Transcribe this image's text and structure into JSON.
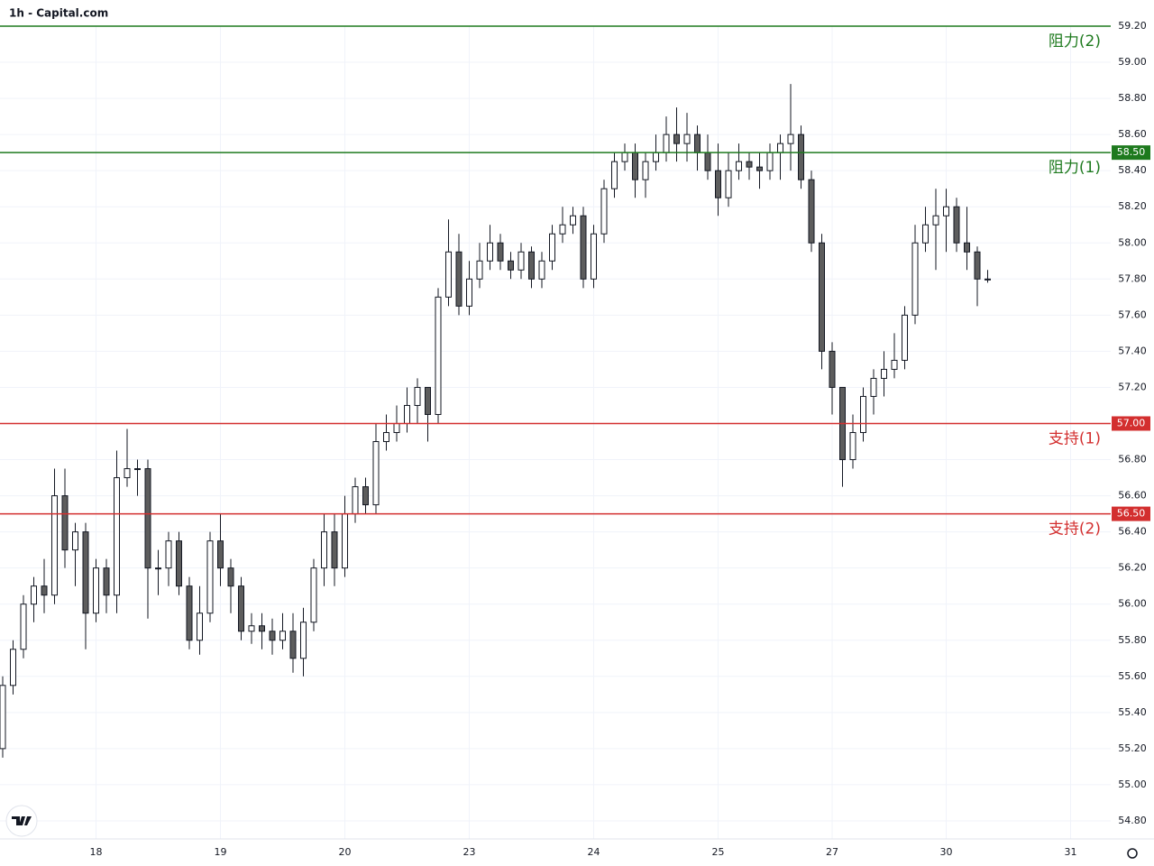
{
  "chart_data": {
    "type": "candlestick",
    "title": "1h - Capital.com",
    "categories": [
      null,
      null,
      null,
      null,
      null,
      null,
      null,
      null,
      null,
      "18",
      null,
      null,
      null,
      null,
      null,
      null,
      null,
      null,
      null,
      null,
      null,
      "19",
      null,
      null,
      null,
      null,
      null,
      null,
      null,
      null,
      null,
      null,
      null,
      "20",
      null,
      null,
      null,
      null,
      null,
      null,
      null,
      null,
      null,
      null,
      null,
      "23",
      null,
      null,
      null,
      null,
      null,
      null,
      null,
      null,
      null,
      null,
      null,
      "24",
      null,
      null,
      null,
      null,
      null,
      null,
      null,
      null,
      null,
      null,
      null,
      "25",
      null,
      null,
      null,
      null,
      null,
      null,
      null,
      null,
      null,
      null,
      "27",
      null,
      null,
      null,
      null,
      null,
      null,
      null,
      null,
      null,
      null,
      "30",
      null,
      null,
      null,
      null,
      null,
      null,
      null,
      null,
      null,
      null,
      null,
      "31"
    ],
    "open": [
      55.2,
      55.55,
      55.75,
      56.0,
      56.1,
      56.05,
      56.6,
      56.3,
      56.4,
      55.95,
      56.2,
      56.05,
      56.7,
      56.75,
      56.75,
      56.2,
      56.2,
      56.35,
      56.1,
      55.8,
      55.95,
      56.35,
      56.2,
      56.1,
      55.85,
      55.88,
      55.85,
      55.8,
      55.85,
      55.7,
      55.9,
      56.2,
      56.4,
      56.2,
      56.5,
      56.65,
      56.55,
      56.9,
      56.95,
      57.0,
      57.1,
      57.2,
      57.05,
      57.7,
      57.95,
      57.65,
      57.8,
      57.9,
      58.0,
      57.9,
      57.85,
      57.95,
      57.8,
      57.9,
      58.05,
      58.1,
      58.15,
      57.8,
      58.05,
      58.3,
      58.45,
      58.5,
      58.35,
      58.45,
      58.5,
      58.6,
      58.55,
      58.6,
      58.5,
      58.4,
      58.25,
      58.4,
      58.45,
      58.42,
      58.4,
      58.5,
      58.55,
      58.6,
      58.35,
      58.0,
      57.4,
      57.2,
      56.8,
      56.95,
      57.15,
      57.25,
      57.3,
      57.35,
      57.6,
      58.0,
      58.1,
      58.15,
      58.2,
      58.0,
      57.95,
      57.8,
      null,
      null,
      null,
      null,
      null,
      null,
      null,
      null
    ],
    "high": [
      55.6,
      55.8,
      56.05,
      56.15,
      56.25,
      56.75,
      56.75,
      56.45,
      56.45,
      56.25,
      56.25,
      56.85,
      56.97,
      56.8,
      56.8,
      56.3,
      56.4,
      56.4,
      56.15,
      56.1,
      56.4,
      56.5,
      56.25,
      56.15,
      55.95,
      55.95,
      55.92,
      55.95,
      55.95,
      55.98,
      56.25,
      56.5,
      56.5,
      56.6,
      56.7,
      56.7,
      57.0,
      57.05,
      57.1,
      57.2,
      57.25,
      57.2,
      57.75,
      58.13,
      58.05,
      57.9,
      58.0,
      58.1,
      58.05,
      57.95,
      58.0,
      57.98,
      57.95,
      58.1,
      58.2,
      58.2,
      58.2,
      58.1,
      58.35,
      58.5,
      58.55,
      58.55,
      58.5,
      58.6,
      58.7,
      58.75,
      58.72,
      58.65,
      58.6,
      58.55,
      58.5,
      58.55,
      58.5,
      58.5,
      58.55,
      58.6,
      58.88,
      58.65,
      58.4,
      58.05,
      57.45,
      57.2,
      57.05,
      57.2,
      57.3,
      57.4,
      57.5,
      57.65,
      58.1,
      58.2,
      58.3,
      58.3,
      58.25,
      58.2,
      57.98,
      57.85,
      null,
      null,
      null,
      null,
      null,
      null,
      null,
      null
    ],
    "low": [
      55.15,
      55.5,
      55.7,
      55.9,
      55.95,
      56.0,
      56.2,
      56.1,
      55.75,
      55.9,
      55.95,
      55.95,
      56.65,
      56.6,
      55.92,
      56.05,
      56.1,
      56.05,
      55.75,
      55.72,
      55.9,
      56.1,
      55.95,
      55.8,
      55.78,
      55.75,
      55.72,
      55.75,
      55.62,
      55.6,
      55.85,
      56.1,
      56.1,
      56.15,
      56.45,
      56.5,
      56.5,
      56.85,
      56.9,
      56.95,
      57.0,
      56.9,
      57.0,
      57.65,
      57.6,
      57.6,
      57.75,
      57.85,
      57.85,
      57.8,
      57.8,
      57.75,
      57.75,
      57.85,
      58.0,
      58.05,
      57.75,
      57.75,
      58.0,
      58.25,
      58.4,
      58.25,
      58.25,
      58.4,
      58.45,
      58.45,
      58.45,
      58.4,
      58.35,
      58.15,
      58.2,
      58.35,
      58.35,
      58.3,
      58.35,
      58.35,
      58.4,
      58.3,
      57.95,
      57.3,
      57.05,
      56.65,
      56.75,
      56.9,
      57.05,
      57.15,
      57.25,
      57.3,
      57.55,
      57.95,
      57.85,
      57.95,
      57.95,
      57.85,
      57.65,
      57.78,
      null,
      null,
      null,
      null,
      null,
      null,
      null,
      null
    ],
    "close": [
      55.55,
      55.75,
      56.0,
      56.1,
      56.05,
      56.6,
      56.3,
      56.4,
      55.95,
      56.2,
      56.05,
      56.7,
      56.75,
      56.75,
      56.2,
      56.2,
      56.35,
      56.1,
      55.8,
      55.95,
      56.35,
      56.2,
      56.1,
      55.85,
      55.88,
      55.85,
      55.8,
      55.85,
      55.7,
      55.9,
      56.2,
      56.4,
      56.2,
      56.5,
      56.65,
      56.55,
      56.9,
      56.95,
      57.0,
      57.1,
      57.2,
      57.05,
      57.7,
      57.95,
      57.65,
      57.8,
      57.9,
      58.0,
      57.9,
      57.85,
      57.95,
      57.8,
      57.9,
      58.05,
      58.1,
      58.15,
      57.8,
      58.05,
      58.3,
      58.45,
      58.5,
      58.35,
      58.45,
      58.5,
      58.6,
      58.55,
      58.6,
      58.5,
      58.4,
      58.25,
      58.4,
      58.45,
      58.42,
      58.4,
      58.5,
      58.55,
      58.6,
      58.35,
      58.0,
      57.4,
      57.2,
      56.8,
      56.95,
      57.15,
      57.25,
      57.3,
      57.35,
      57.6,
      58.0,
      58.1,
      58.15,
      58.2,
      58.0,
      57.95,
      57.8,
      57.8,
      null,
      null,
      null,
      null,
      null,
      null,
      null,
      null
    ],
    "up_color": "#ffffff",
    "down_color": "#5d5d5d",
    "edge_color": "#131722",
    "ylim": [
      54.7,
      59.2
    ],
    "yticks": [
      {
        "value": 54.8,
        "label": "54.80"
      },
      {
        "value": 55.0,
        "label": "55.00"
      },
      {
        "value": 55.2,
        "label": "55.20"
      },
      {
        "value": 55.4,
        "label": "55.40"
      },
      {
        "value": 55.6,
        "label": "55.60"
      },
      {
        "value": 55.8,
        "label": "55.80"
      },
      {
        "value": 56.0,
        "label": "56.00"
      },
      {
        "value": 56.2,
        "label": "56.20"
      },
      {
        "value": 56.4,
        "label": "56.40"
      },
      {
        "value": 56.6,
        "label": "56.60"
      },
      {
        "value": 56.8,
        "label": "56.80"
      },
      {
        "value": 57.0,
        "label": "57.00"
      },
      {
        "value": 57.2,
        "label": "57.20"
      },
      {
        "value": 57.4,
        "label": "57.40"
      },
      {
        "value": 57.6,
        "label": "57.60"
      },
      {
        "value": 57.8,
        "label": "57.80"
      },
      {
        "value": 58.0,
        "label": "58.00"
      },
      {
        "value": 58.2,
        "label": "58.20"
      },
      {
        "value": 58.4,
        "label": "58.40"
      },
      {
        "value": 58.6,
        "label": "58.60"
      },
      {
        "value": 58.8,
        "label": "58.80"
      },
      {
        "value": 59.0,
        "label": "59.00"
      },
      {
        "value": 59.2,
        "label": "59.20"
      }
    ],
    "grid": true,
    "levels": [
      {
        "name": "阻力(2)",
        "value": 59.2,
        "color": "#1e7a1e"
      },
      {
        "name": "阻力(1)",
        "value": 58.5,
        "label": "58.50",
        "color": "#1e7a1e"
      },
      {
        "name": "支持(1)",
        "value": 57.0,
        "label": "57.00",
        "color": "#d32f2f"
      },
      {
        "name": "支持(2)",
        "value": 56.5,
        "label": "56.50",
        "color": "#d32f2f"
      }
    ]
  }
}
